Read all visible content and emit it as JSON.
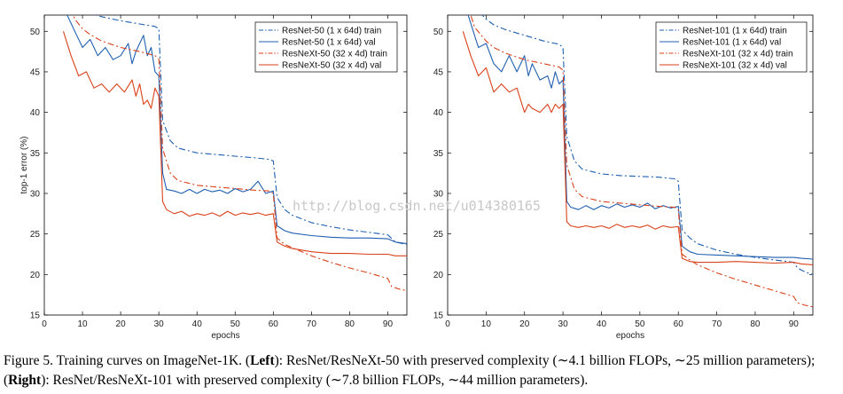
{
  "caption": {
    "part1": "Figure 5. Training curves on ImageNet-1K. (",
    "left_bold": "Left",
    "part2": "): ResNet/ResNeXt-50 with preserved complexity (∼4.1 billion FLOPs, ∼25 million parameters); (",
    "right_bold": "Right",
    "part3": "): ResNet/ResNeXt-101 with preserved complexity (∼7.8 billion FLOPs, ∼44 million parameters)."
  },
  "watermark": "http://blog.csdn.net/u014380165",
  "colors": {
    "blue": "#1f5fb0",
    "orange": "#d9421a"
  },
  "chart_data": [
    {
      "type": "line",
      "xlabel": "epochs",
      "ylabel": "top-1 error (%)",
      "xlim": [
        0,
        95
      ],
      "ylim": [
        15,
        52
      ],
      "xticks": [
        0,
        10,
        20,
        30,
        40,
        50,
        60,
        70,
        80,
        90
      ],
      "yticks": [
        15,
        20,
        25,
        30,
        35,
        40,
        45,
        50
      ],
      "legend_position": "top-right",
      "series": [
        {
          "name": "ResNet-50 (1 x 64d) train",
          "color": "#1f5fb0",
          "style": "dashdot",
          "x": [
            5,
            8,
            10,
            12,
            15,
            20,
            25,
            29,
            30,
            31,
            33,
            35,
            40,
            45,
            50,
            55,
            59,
            60,
            61,
            63,
            65,
            70,
            75,
            80,
            85,
            90,
            92,
            95
          ],
          "y": [
            58,
            53.5,
            52.8,
            52.2,
            51.8,
            51.3,
            50.9,
            50.6,
            50.3,
            39,
            36.5,
            35.6,
            35.0,
            34.8,
            34.6,
            34.4,
            34.2,
            34.0,
            29.5,
            28,
            27.3,
            26.4,
            25.9,
            25.5,
            25.2,
            24.9,
            24.0,
            23.7
          ]
        },
        {
          "name": "ResNet-50 (1 x 64d) val",
          "color": "#1f5fb0",
          "style": "solid",
          "x": [
            6,
            8,
            10,
            12,
            14,
            16,
            18,
            20,
            22,
            23,
            24,
            26,
            27,
            28,
            29,
            30,
            31,
            32,
            34,
            36,
            38,
            40,
            42,
            44,
            46,
            48,
            50,
            52,
            54,
            56,
            58,
            60,
            61,
            63,
            65,
            70,
            75,
            80,
            85,
            90,
            92,
            95
          ],
          "y": [
            52,
            50,
            48,
            49,
            47,
            48,
            46.5,
            47,
            48.5,
            46,
            47.5,
            49.5,
            47,
            48,
            45,
            44.5,
            32.5,
            30.5,
            30.3,
            30.0,
            30.5,
            30.0,
            30.5,
            30.2,
            30.4,
            30.0,
            30.6,
            30.2,
            30.5,
            31.5,
            30.0,
            30.3,
            26.0,
            25.4,
            25.1,
            24.8,
            24.6,
            24.5,
            24.5,
            24.4,
            24.0,
            23.8
          ]
        },
        {
          "name": "ResNeXt-50 (32 x 4d) train",
          "color": "#d9421a",
          "style": "dashdot",
          "x": [
            5,
            8,
            10,
            12,
            15,
            20,
            25,
            29,
            30,
            31,
            33,
            35,
            40,
            45,
            50,
            55,
            59,
            60,
            61,
            63,
            65,
            70,
            75,
            80,
            85,
            90,
            91,
            93,
            95
          ],
          "y": [
            56,
            51.5,
            50.3,
            49.6,
            48.8,
            48.0,
            47.5,
            47.0,
            46.6,
            35.5,
            32.5,
            31.6,
            31.0,
            30.8,
            30.6,
            30.4,
            30.3,
            30.0,
            24.5,
            23.7,
            23.3,
            22.3,
            21.5,
            20.8,
            20.2,
            19.5,
            18.5,
            18.2,
            18.0
          ]
        },
        {
          "name": "ResNeXt-50 (32 x 4d) val",
          "color": "#d9421a",
          "style": "solid",
          "x": [
            5,
            7,
            9,
            11,
            13,
            15,
            17,
            19,
            21,
            23,
            24,
            25,
            26,
            27,
            28,
            29,
            30,
            31,
            32,
            34,
            36,
            38,
            40,
            42,
            44,
            46,
            48,
            50,
            52,
            54,
            56,
            58,
            60,
            61,
            63,
            65,
            70,
            75,
            80,
            85,
            90,
            92,
            95
          ],
          "y": [
            50,
            47,
            44.5,
            45,
            43,
            43.5,
            42.5,
            43.5,
            42.5,
            44,
            42,
            43.5,
            41,
            41.5,
            40.5,
            43,
            42,
            29,
            28,
            27.5,
            27.8,
            27.2,
            27.5,
            27.3,
            27.6,
            27.2,
            27.8,
            27.3,
            27.6,
            27.4,
            27.6,
            27.3,
            27.5,
            24,
            23.5,
            23.2,
            22.8,
            22.6,
            22.6,
            22.5,
            22.5,
            22.3,
            22.3
          ]
        }
      ]
    },
    {
      "type": "line",
      "xlabel": "epochs",
      "ylabel": "",
      "xlim": [
        0,
        95
      ],
      "ylim": [
        15,
        52
      ],
      "xticks": [
        0,
        10,
        20,
        30,
        40,
        50,
        60,
        70,
        80,
        90
      ],
      "yticks": [
        15,
        20,
        25,
        30,
        35,
        40,
        45,
        50
      ],
      "legend_position": "top-right",
      "series": [
        {
          "name": "ResNet-101 (1 x 64d) train",
          "color": "#1f5fb0",
          "style": "dashdot",
          "x": [
            5,
            8,
            10,
            12,
            15,
            20,
            25,
            29,
            30,
            31,
            33,
            35,
            40,
            45,
            50,
            55,
            59,
            60,
            61,
            63,
            65,
            70,
            75,
            80,
            85,
            90,
            91,
            93,
            95
          ],
          "y": [
            57,
            52.5,
            51.5,
            50.8,
            50.2,
            49.5,
            48.8,
            48.4,
            48.0,
            37,
            34,
            33,
            32.4,
            32.2,
            32.1,
            32.0,
            31.8,
            31.5,
            25.5,
            24.5,
            23.8,
            23.0,
            22.5,
            22.1,
            21.8,
            21.5,
            20.8,
            20.3,
            20.0
          ]
        },
        {
          "name": "ResNet-101 (1 x 64d) val",
          "color": "#1f5fb0",
          "style": "solid",
          "x": [
            4,
            6,
            8,
            10,
            12,
            14,
            16,
            18,
            20,
            21,
            22,
            24,
            26,
            27,
            28,
            29,
            30,
            31,
            32,
            34,
            36,
            38,
            40,
            42,
            44,
            46,
            48,
            50,
            52,
            54,
            56,
            58,
            60,
            61,
            63,
            65,
            70,
            75,
            80,
            85,
            90,
            92,
            95
          ],
          "y": [
            54,
            51,
            48,
            48.5,
            46,
            45,
            47,
            45,
            47,
            44.5,
            46,
            44,
            44.5,
            43,
            45,
            43.5,
            44,
            29,
            28.3,
            28.0,
            28.5,
            28.0,
            28.5,
            28.2,
            28.7,
            28.3,
            28.6,
            28.3,
            28.8,
            28.1,
            28.5,
            28.2,
            28.4,
            23.5,
            22.8,
            22.5,
            22.4,
            22.3,
            22.2,
            22.1,
            22.1,
            22.0,
            21.9
          ]
        },
        {
          "name": "ResNeXt-101 (32 x 4d) train",
          "color": "#d9421a",
          "style": "dashdot",
          "x": [
            4,
            7,
            10,
            12,
            15,
            20,
            25,
            29,
            30,
            31,
            33,
            35,
            40,
            45,
            50,
            55,
            59,
            60,
            61,
            63,
            65,
            70,
            75,
            80,
            85,
            90,
            91,
            93,
            95
          ],
          "y": [
            55,
            50.5,
            48.8,
            48.0,
            47.3,
            46.5,
            46.0,
            45.6,
            45.2,
            33.5,
            30.5,
            29.6,
            29.0,
            28.8,
            28.6,
            28.4,
            28.3,
            28.0,
            22.5,
            21.8,
            21.2,
            20.2,
            19.4,
            18.7,
            18.0,
            17.3,
            16.5,
            16.2,
            16.0
          ]
        },
        {
          "name": "ResNeXt-101 (32 x 4d) val",
          "color": "#d9421a",
          "style": "solid",
          "x": [
            4,
            6,
            8,
            10,
            12,
            14,
            16,
            18,
            20,
            21,
            22,
            24,
            26,
            27,
            28,
            29,
            30,
            31,
            32,
            34,
            36,
            38,
            40,
            42,
            44,
            46,
            48,
            50,
            52,
            54,
            56,
            58,
            60,
            61,
            63,
            65,
            70,
            75,
            80,
            85,
            90,
            92,
            95
          ],
          "y": [
            50,
            47,
            44.5,
            45.5,
            42.5,
            43.5,
            42.5,
            43,
            40,
            41,
            40.5,
            40,
            41,
            40,
            41,
            40.5,
            41,
            26.5,
            26.0,
            25.8,
            26.0,
            25.8,
            26.0,
            25.7,
            26.2,
            25.8,
            26.0,
            25.8,
            26.1,
            25.6,
            26.0,
            25.8,
            25.9,
            22.0,
            21.6,
            21.5,
            21.5,
            21.6,
            21.5,
            21.4,
            21.5,
            21.3,
            21.2
          ]
        }
      ]
    }
  ]
}
